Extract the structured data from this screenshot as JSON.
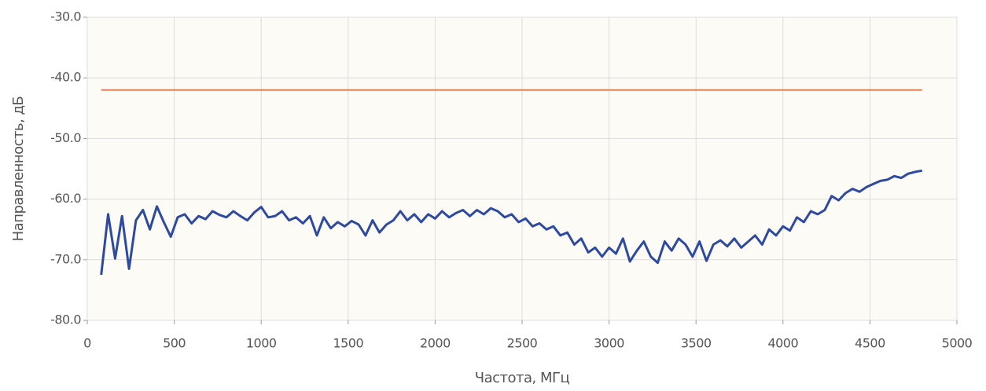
{
  "chart_data": {
    "type": "line",
    "xlabel": "Частота, МГц",
    "ylabel": "Направленность, дБ",
    "xlim": [
      0,
      5000
    ],
    "xticks": [
      0,
      500,
      1000,
      1500,
      2000,
      2500,
      3000,
      3500,
      4000,
      4500,
      5000
    ],
    "ylim": [
      -80,
      -30
    ],
    "yticks": [
      {
        "value": -80,
        "label": "-80.0"
      },
      {
        "value": -70,
        "label": "-70.0"
      },
      {
        "value": -60,
        "label": "-60.0"
      },
      {
        "value": -50,
        "label": "-50.0"
      },
      {
        "value": -40,
        "label": "-40.0"
      },
      {
        "value": -30,
        "label": "-30.0"
      }
    ],
    "grid": true,
    "series": [
      {
        "color": "#e07b50",
        "x": [
          80,
          4800
        ],
        "values": [
          -42,
          -42
        ]
      },
      {
        "color": "#2e4a9e",
        "x": [
          80,
          120,
          160,
          200,
          240,
          280,
          320,
          360,
          400,
          440,
          480,
          520,
          560,
          600,
          640,
          680,
          720,
          760,
          800,
          840,
          880,
          920,
          960,
          1000,
          1040,
          1080,
          1120,
          1160,
          1200,
          1240,
          1280,
          1320,
          1360,
          1400,
          1440,
          1480,
          1520,
          1560,
          1600,
          1640,
          1680,
          1720,
          1760,
          1800,
          1840,
          1880,
          1920,
          1960,
          2000,
          2040,
          2080,
          2120,
          2160,
          2200,
          2240,
          2280,
          2320,
          2360,
          2400,
          2440,
          2480,
          2520,
          2560,
          2600,
          2640,
          2680,
          2720,
          2760,
          2800,
          2840,
          2880,
          2920,
          2960,
          3000,
          3040,
          3080,
          3120,
          3160,
          3200,
          3240,
          3280,
          3320,
          3360,
          3400,
          3440,
          3480,
          3520,
          3560,
          3600,
          3640,
          3680,
          3720,
          3760,
          3800,
          3840,
          3880,
          3920,
          3960,
          4000,
          4040,
          4080,
          4120,
          4160,
          4200,
          4240,
          4280,
          4320,
          4360,
          4400,
          4440,
          4480,
          4520,
          4560,
          4600,
          4640,
          4680,
          4720,
          4760,
          4800
        ],
        "values": [
          -72.5,
          -62.5,
          -69.8,
          -62.8,
          -71.5,
          -63.5,
          -61.8,
          -65.0,
          -61.2,
          -63.8,
          -66.2,
          -63.0,
          -62.5,
          -64.0,
          -62.8,
          -63.3,
          -62.0,
          -62.6,
          -63.0,
          -62.0,
          -62.8,
          -63.5,
          -62.2,
          -61.3,
          -63.0,
          -62.8,
          -62.0,
          -63.5,
          -63.0,
          -64.0,
          -62.8,
          -66.0,
          -63.0,
          -64.8,
          -63.8,
          -64.5,
          -63.6,
          -64.2,
          -66.0,
          -63.5,
          -65.5,
          -64.2,
          -63.5,
          -62.0,
          -63.5,
          -62.5,
          -63.8,
          -62.5,
          -63.2,
          -62.0,
          -63.0,
          -62.3,
          -61.8,
          -62.8,
          -61.8,
          -62.5,
          -61.5,
          -62.0,
          -63.0,
          -62.5,
          -63.8,
          -63.2,
          -64.5,
          -64.0,
          -65.0,
          -64.5,
          -66.0,
          -65.5,
          -67.5,
          -66.5,
          -68.8,
          -68.0,
          -69.5,
          -68.0,
          -69.0,
          -66.5,
          -70.3,
          -68.5,
          -67.0,
          -69.5,
          -70.5,
          -67.0,
          -68.5,
          -66.5,
          -67.5,
          -69.5,
          -67.0,
          -70.2,
          -67.5,
          -66.8,
          -67.8,
          -66.5,
          -68.0,
          -67.0,
          -66.0,
          -67.5,
          -65.0,
          -66.0,
          -64.5,
          -65.2,
          -63.0,
          -63.8,
          -62.0,
          -62.5,
          -61.8,
          -59.5,
          -60.2,
          -59.0,
          -58.3,
          -58.8,
          -58.0,
          -57.5,
          -57.0,
          -56.8,
          -56.2,
          -56.5,
          -55.8,
          -55.5,
          -55.3
        ]
      }
    ]
  }
}
